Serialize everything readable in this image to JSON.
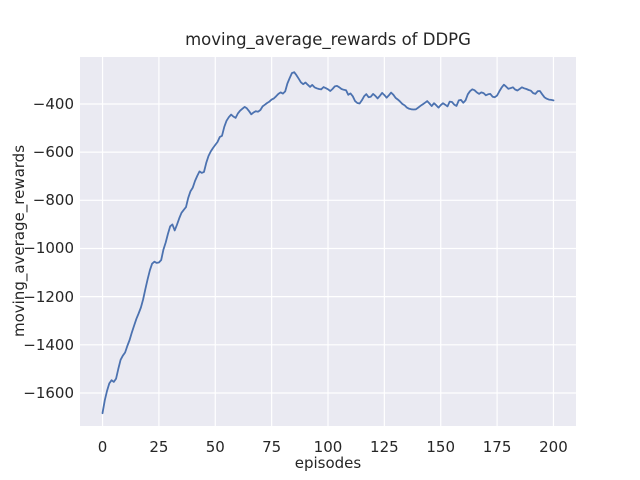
{
  "figure": {
    "background": "#ffffff"
  },
  "chart_data": {
    "type": "line",
    "title": "moving_average_rewards of DDPG",
    "xlabel": "episodes",
    "ylabel": "moving_average_rewards",
    "grid": true,
    "legend": null,
    "axes_background": "#eaeaf2",
    "grid_color": "#ffffff",
    "text_color": "#262626",
    "xlim": [
      -10,
      210
    ],
    "ylim": [
      -1737,
      -205
    ],
    "x_ticks": [
      {
        "value": 0,
        "label": "0"
      },
      {
        "value": 25,
        "label": "25"
      },
      {
        "value": 50,
        "label": "50"
      },
      {
        "value": 75,
        "label": "75"
      },
      {
        "value": 100,
        "label": "100"
      },
      {
        "value": 125,
        "label": "125"
      },
      {
        "value": 150,
        "label": "150"
      },
      {
        "value": 175,
        "label": "175"
      },
      {
        "value": 200,
        "label": "200"
      }
    ],
    "y_ticks": [
      {
        "value": -400,
        "label": "−400"
      },
      {
        "value": -600,
        "label": "−600"
      },
      {
        "value": -800,
        "label": "−800"
      },
      {
        "value": -1000,
        "label": "−1000"
      },
      {
        "value": -1200,
        "label": "−1200"
      },
      {
        "value": -1400,
        "label": "−1400"
      },
      {
        "value": -1600,
        "label": "−1600"
      }
    ],
    "series": [
      {
        "name": "moving_average_rewards",
        "color": "#4c72b0",
        "line_width": 1.8,
        "x_start": 0,
        "x_step": 1,
        "values": [
          -1684,
          -1630,
          -1590,
          -1560,
          -1547,
          -1554,
          -1540,
          -1500,
          -1462,
          -1445,
          -1432,
          -1405,
          -1380,
          -1348,
          -1320,
          -1292,
          -1270,
          -1245,
          -1212,
          -1168,
          -1128,
          -1090,
          -1063,
          -1055,
          -1060,
          -1058,
          -1048,
          -1005,
          -975,
          -940,
          -908,
          -900,
          -925,
          -902,
          -875,
          -852,
          -840,
          -828,
          -790,
          -762,
          -748,
          -720,
          -699,
          -680,
          -686,
          -682,
          -644,
          -616,
          -597,
          -583,
          -570,
          -558,
          -537,
          -532,
          -495,
          -470,
          -455,
          -444,
          -452,
          -458,
          -440,
          -428,
          -420,
          -412,
          -418,
          -430,
          -443,
          -435,
          -430,
          -432,
          -425,
          -410,
          -403,
          -396,
          -390,
          -382,
          -377,
          -368,
          -358,
          -352,
          -357,
          -348,
          -315,
          -292,
          -272,
          -268,
          -280,
          -295,
          -310,
          -318,
          -311,
          -320,
          -329,
          -321,
          -331,
          -335,
          -338,
          -339,
          -330,
          -334,
          -339,
          -346,
          -338,
          -327,
          -325,
          -331,
          -338,
          -341,
          -343,
          -362,
          -356,
          -368,
          -388,
          -396,
          -398,
          -385,
          -368,
          -359,
          -372,
          -370,
          -358,
          -366,
          -377,
          -366,
          -354,
          -363,
          -374,
          -364,
          -353,
          -362,
          -375,
          -382,
          -390,
          -400,
          -406,
          -415,
          -420,
          -422,
          -423,
          -422,
          -415,
          -408,
          -402,
          -395,
          -388,
          -398,
          -409,
          -397,
          -405,
          -415,
          -405,
          -397,
          -403,
          -410,
          -390,
          -392,
          -403,
          -408,
          -385,
          -383,
          -395,
          -385,
          -360,
          -347,
          -339,
          -343,
          -352,
          -358,
          -352,
          -355,
          -364,
          -360,
          -358,
          -370,
          -372,
          -365,
          -348,
          -332,
          -320,
          -328,
          -337,
          -334,
          -331,
          -340,
          -344,
          -338,
          -331,
          -335,
          -338,
          -342,
          -345,
          -355,
          -358,
          -347,
          -346,
          -360,
          -372,
          -378,
          -382,
          -383,
          -385
        ]
      }
    ]
  }
}
